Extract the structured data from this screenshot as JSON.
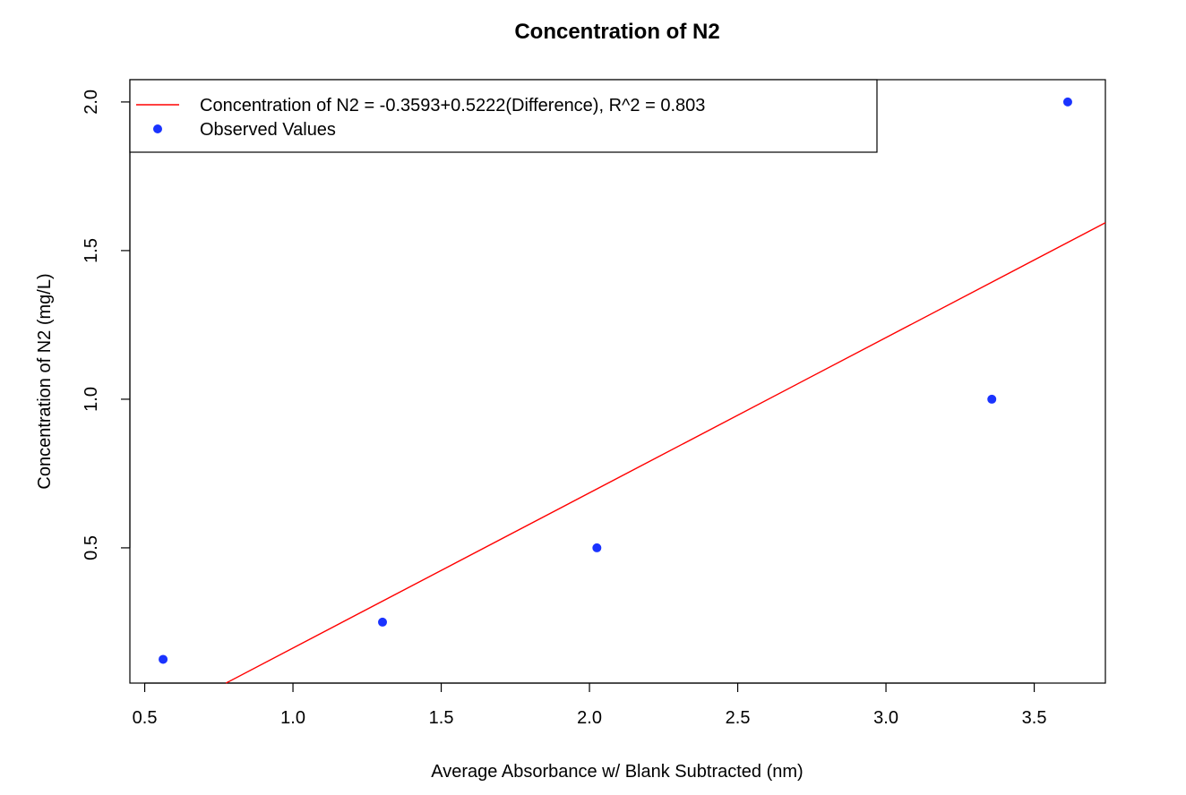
{
  "chart_data": {
    "type": "scatter",
    "title": "Concentration of N2",
    "xlabel": "Average Absorbance w/ Blank Subtracted (nm)",
    "ylabel": "Concentration of N2 (mg/L)",
    "xlim": [
      0.45,
      3.74
    ],
    "ylim": [
      0.045,
      2.075
    ],
    "xticks": [
      "0.5",
      "1.0",
      "1.5",
      "2.0",
      "2.5",
      "3.0",
      "3.5"
    ],
    "yticks": [
      "0.5",
      "1.0",
      "1.5",
      "2.0"
    ],
    "grid": false,
    "legend_position": "top-left",
    "series": [
      {
        "name": "Observed Values",
        "kind": "points",
        "color": "#1a33ff",
        "x": [
          0.562,
          1.302,
          2.025,
          3.357,
          3.613
        ],
        "y": [
          0.125,
          0.25,
          0.5,
          1.0,
          2.0
        ]
      },
      {
        "name": "Concentration of N2 = -0.3593+0.5222(Difference), R^2 = 0.803",
        "kind": "line",
        "color": "#ff0000",
        "intercept": -0.3593,
        "slope": 0.5222
      }
    ]
  }
}
